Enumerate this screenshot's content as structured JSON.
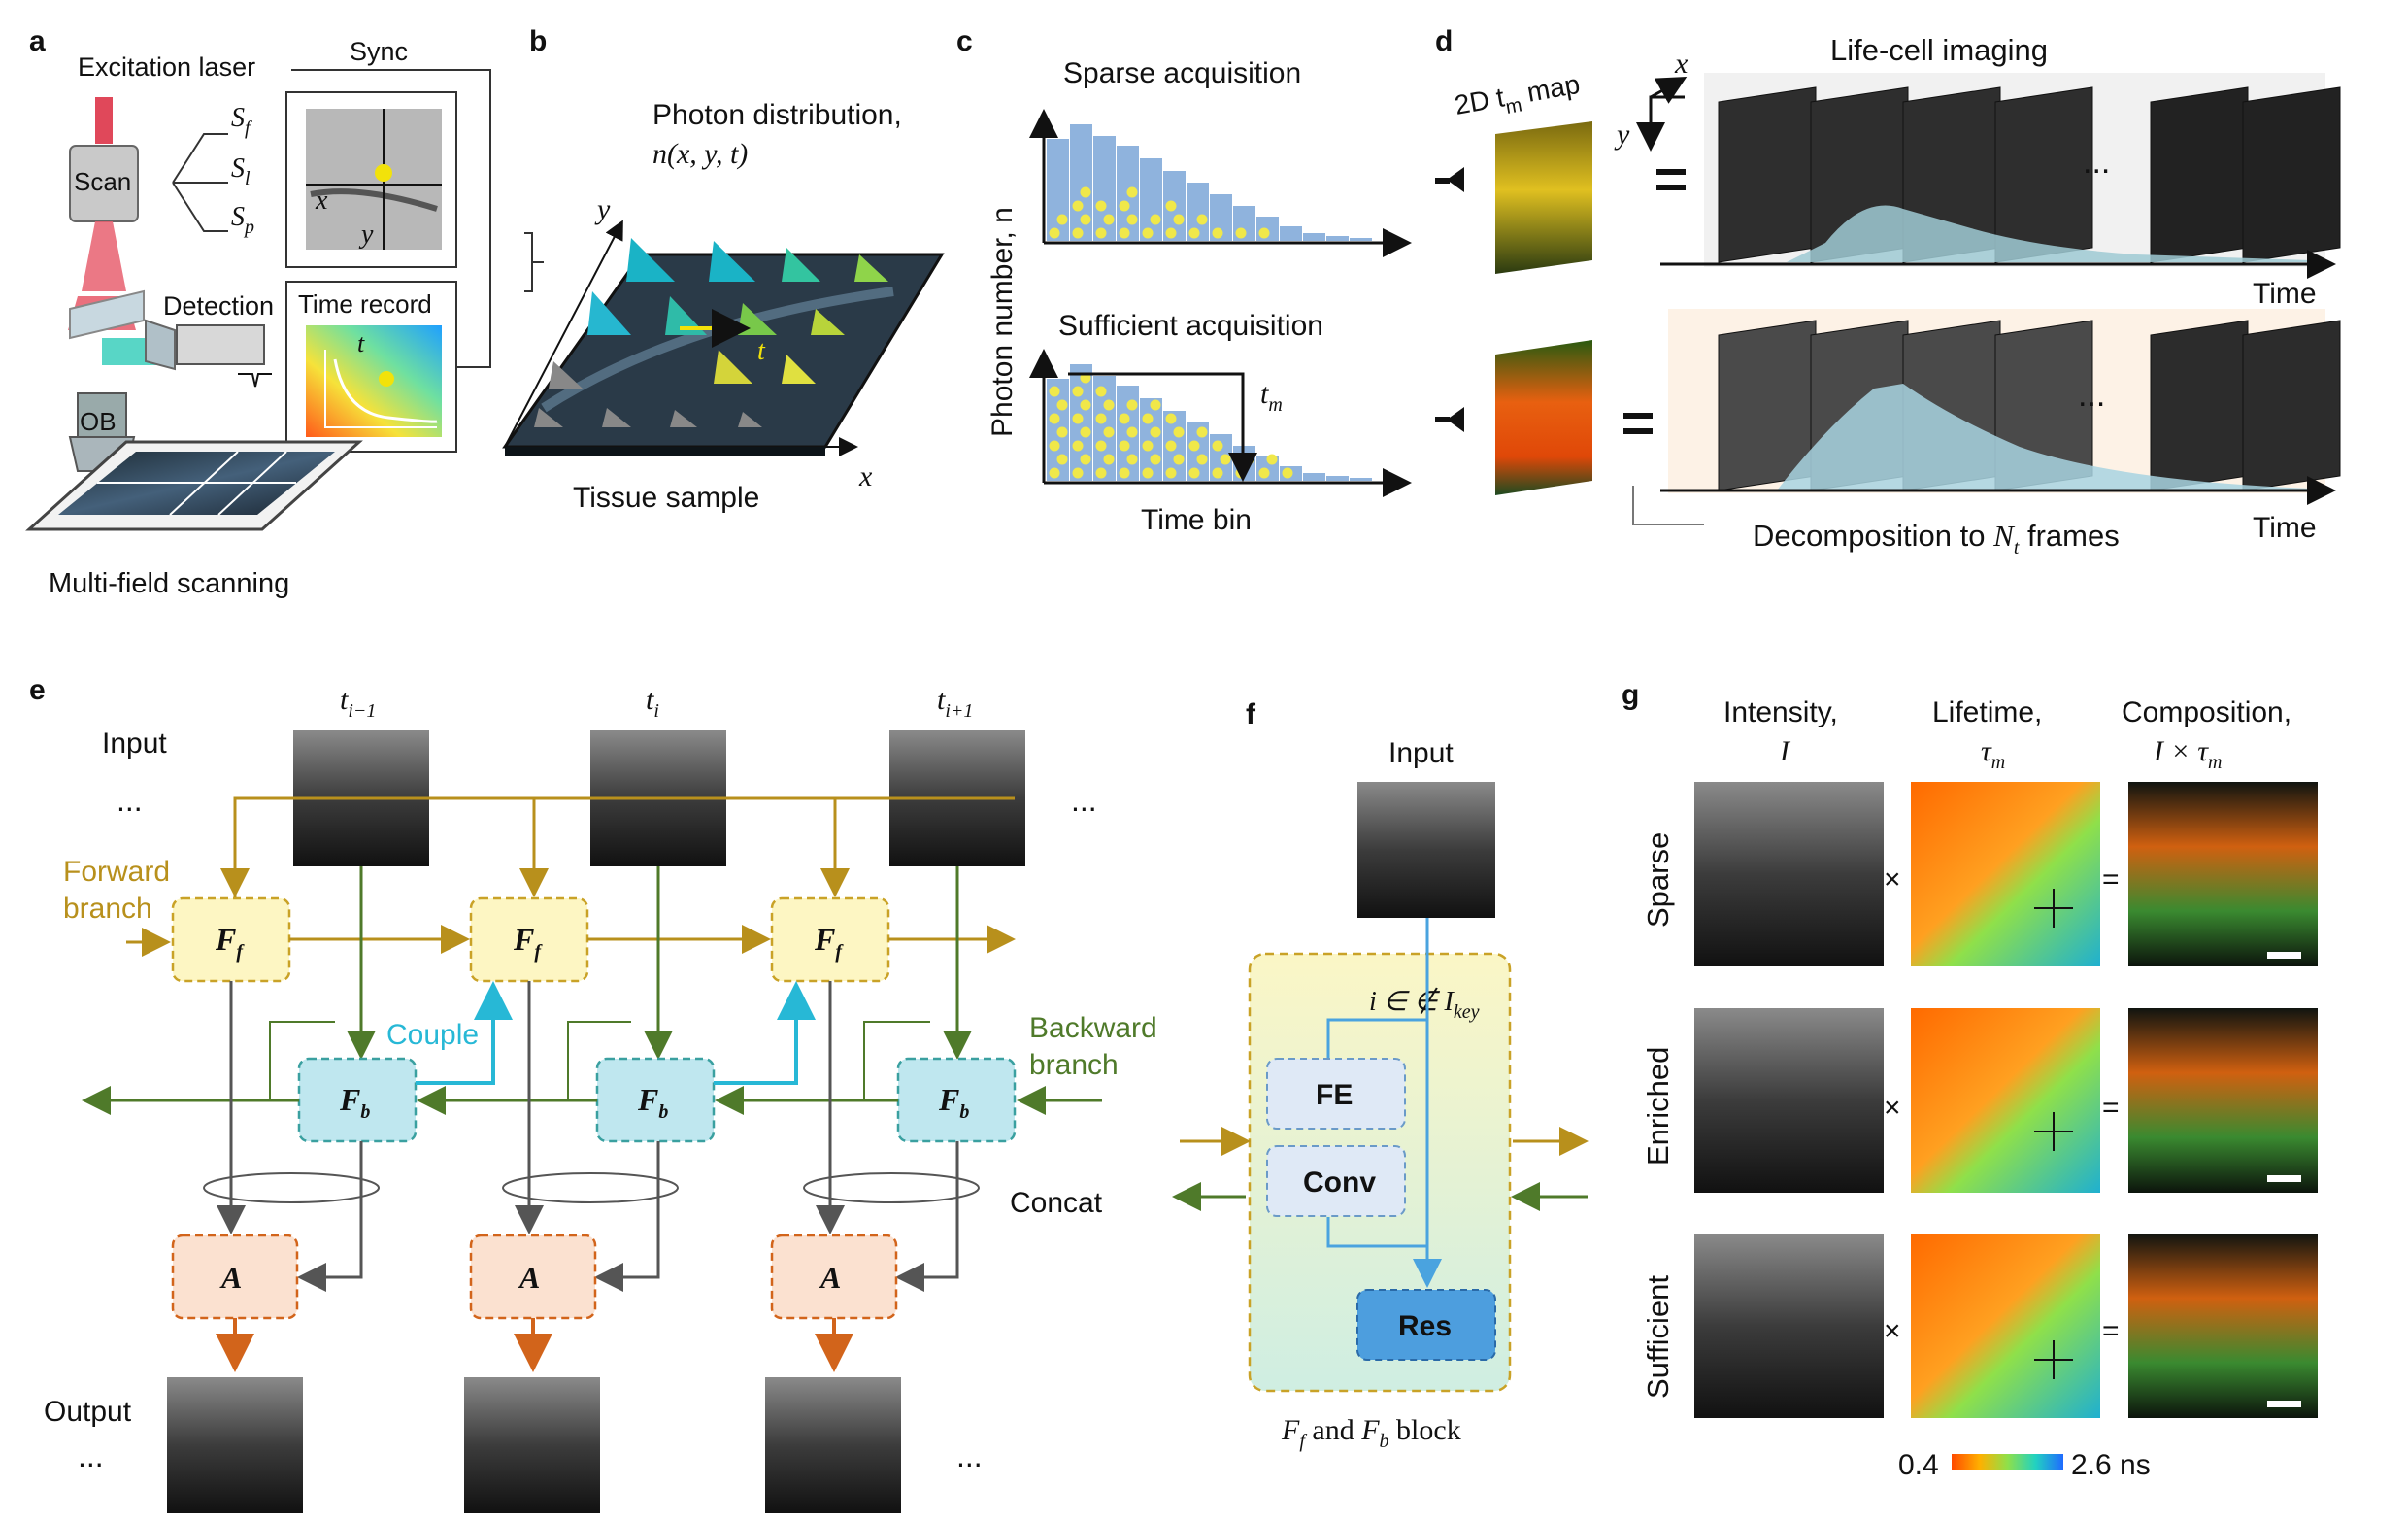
{
  "panels": {
    "a": "a",
    "b": "b",
    "c": "c",
    "d": "d",
    "e": "e",
    "f": "f",
    "g": "g"
  },
  "a": {
    "excitation_laser": "Excitation laser",
    "sync": "Sync",
    "scan": "Scan",
    "sf": "S",
    "sf_sub": "f",
    "sl": "S",
    "sl_sub": "l",
    "sp": "S",
    "sp_sub": "p",
    "x": "x",
    "y": "y",
    "detection": "Detection",
    "time_record": "Time record",
    "t": "t",
    "ob": "OB",
    "caption": "Multi-field scanning"
  },
  "b": {
    "title_line1": "Photon distribution,",
    "title_line2": "n(x, y, t)",
    "y": "y",
    "x": "x",
    "t": "t",
    "caption": "Tissue sample"
  },
  "c": {
    "sparse": "Sparse acquisition",
    "sufficient": "Sufficient acquisition",
    "ylabel": "Photon number, n",
    "xlabel": "Time bin",
    "tm": "t",
    "tm_sub": "m"
  },
  "d": {
    "map_label": "2D t",
    "map_label_sub": "m",
    "map_label_tail": " map",
    "title": "Life-cell imaging",
    "x": "x",
    "y": "y",
    "eq": "=",
    "ellipsis": "...",
    "time": "Time",
    "decomp_pre": "Decomposition to ",
    "decomp_n": "N",
    "decomp_sub": "t",
    "decomp_post": " frames"
  },
  "e": {
    "input": "Input",
    "output": "Output",
    "ellipsis": "...",
    "t_prev": "t",
    "t_prev_sub": "i−1",
    "t_cur": "t",
    "t_cur_sub": "i",
    "t_next": "t",
    "t_next_sub": "i+1",
    "forward_branch_1": "Forward",
    "forward_branch_2": "branch",
    "backward_branch_1": "Backward",
    "backward_branch_2": "branch",
    "couple": "Couple",
    "concat": "Concat",
    "ff": "F",
    "ff_sub": "f",
    "fb": "F",
    "fb_sub": "b",
    "a": "A"
  },
  "f": {
    "input": "Input",
    "cond": "i ∈   ∉ I",
    "cond_sub": "key",
    "fe": "FE",
    "conv": "Conv",
    "res": "Res",
    "caption_1": "F",
    "caption_1_sub": "f",
    "caption_and": " and ",
    "caption_2": "F",
    "caption_2_sub": "b",
    "caption_tail": " block"
  },
  "g": {
    "col1_line1": "Intensity,",
    "col1_line2": "I",
    "col2_line1": "Lifetime,",
    "col2_line2": "τ",
    "col2_sub": "m",
    "col3_line1": "Composition,",
    "col3_line2": "I × τ",
    "col3_sub": "m",
    "rows": [
      "Sparse",
      "Enriched",
      "Sufficient"
    ],
    "times": "×",
    "eq": "=",
    "cbar_min": "0.4",
    "cbar_max": "2.6 ns"
  },
  "colors": {
    "forward": "#b8901c",
    "backward": "#4f7a2a",
    "couple": "#27b8d6",
    "ff_fill": "#fdf6c3",
    "fb_fill": "#bfe7ef",
    "a_fill": "#fbe1d0",
    "a_arrow": "#d2641b",
    "bar_blue": "#8fb3dd",
    "photon_yellow": "#f0e84a"
  }
}
